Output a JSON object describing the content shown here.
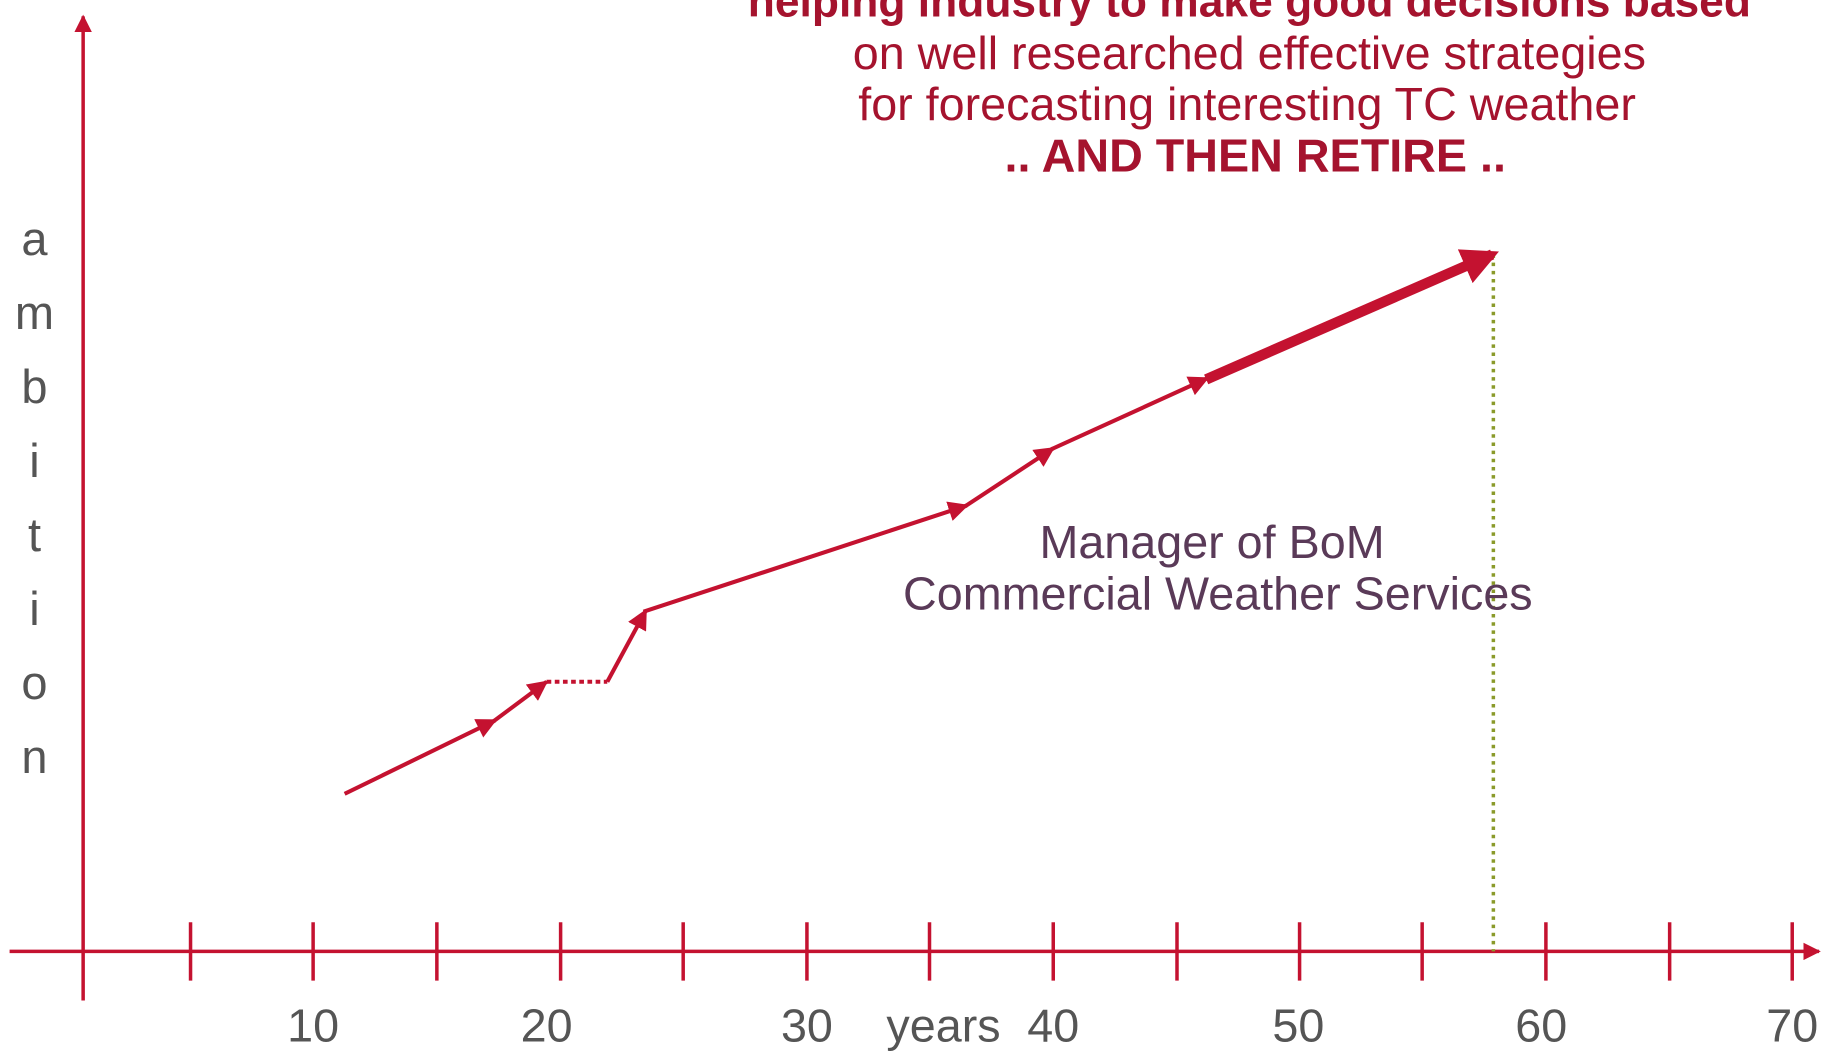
{
  "title_lines": [
    "helping industry to make good decisions based",
    "on well researched effective strategies",
    "for forecasting interesting TC weather",
    "..  AND THEN RETIRE .."
  ],
  "y_axis_label": "ambition",
  "x_axis_label": "years",
  "x_tick_labels": [
    "10",
    "20",
    "30",
    "40",
    "50",
    "60",
    "70"
  ],
  "annotation_lines": [
    "Manager of BoM",
    "Commercial Weather Services"
  ]
}
